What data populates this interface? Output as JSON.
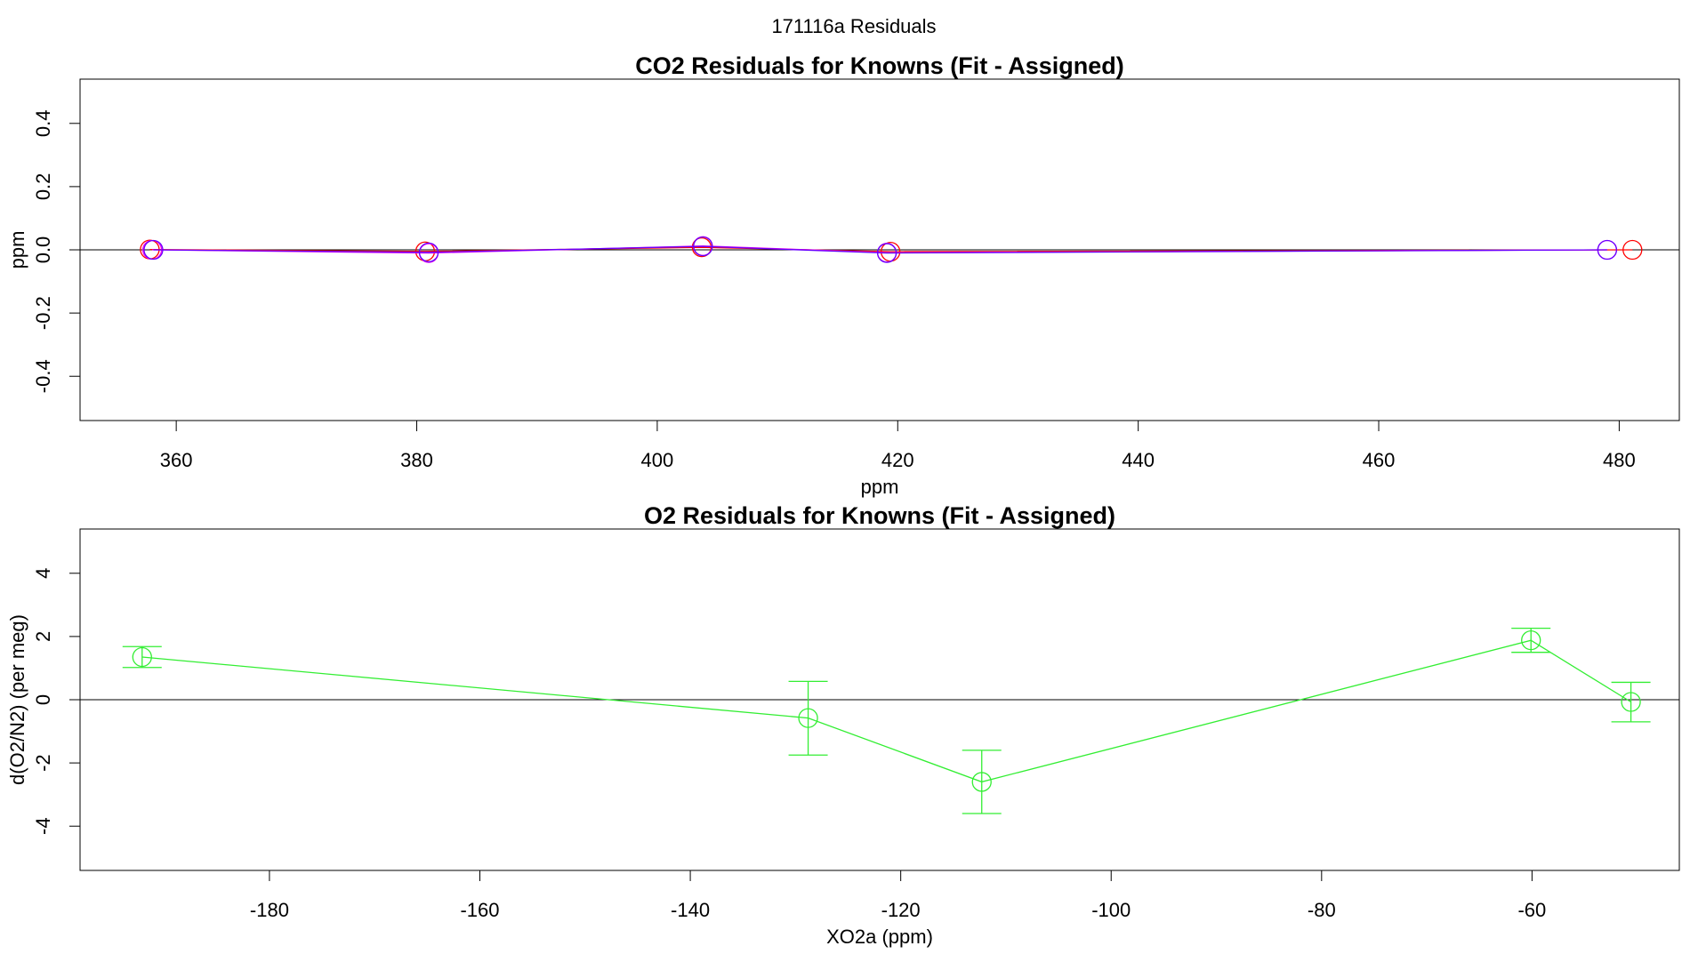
{
  "figure": {
    "title": "171116a  Residuals"
  },
  "chart_data": [
    {
      "type": "line",
      "title": "CO2 Residuals for Knowns (Fit - Assigned)",
      "xlabel": "ppm",
      "ylabel": "ppm",
      "xlim": [
        352,
        485
      ],
      "ylim": [
        -0.54,
        0.54
      ],
      "xticks": [
        360,
        380,
        400,
        420,
        440,
        460,
        480
      ],
      "yticks": [
        -0.4,
        -0.2,
        0.0,
        0.2,
        0.4
      ],
      "xtick_labels": [
        "360",
        "380",
        "400",
        "420",
        "440",
        "460",
        "480"
      ],
      "ytick_labels": [
        "-0.4",
        "-0.2",
        "0.0",
        "0.2",
        "0.4"
      ],
      "zero_line": true,
      "grid": false,
      "legend": "none",
      "series": [
        {
          "color": "#ff0000",
          "x": [
            357.8,
            380.7,
            403.7,
            419.4,
            481.1
          ],
          "y": [
            0.001,
            -0.005,
            0.008,
            -0.006,
            0.0
          ]
        },
        {
          "color": "#ee00ee",
          "x": [
            358.0,
            381.0,
            403.8,
            419.1,
            479.0
          ],
          "y": [
            0.0,
            -0.01,
            0.012,
            -0.009,
            0.0
          ]
        },
        {
          "color": "#6600ff",
          "x": [
            358.1,
            381.0,
            403.8,
            419.1,
            479.0
          ],
          "y": [
            0.0,
            -0.008,
            0.011,
            -0.01,
            0.0
          ]
        }
      ]
    },
    {
      "type": "line",
      "title": "O2 Residuals for Knowns (Fit - Assigned)",
      "xlabel": "XO2a (ppm)",
      "ylabel": "d(O2/N2) (per meg)",
      "xlim": [
        -198,
        -46
      ],
      "ylim": [
        -5.4,
        5.4
      ],
      "xticks": [
        -180,
        -160,
        -140,
        -120,
        -100,
        -80,
        -60
      ],
      "yticks": [
        -4,
        -2,
        0,
        2,
        4
      ],
      "xtick_labels": [
        "-180",
        "-160",
        "-140",
        "-120",
        "-100",
        "-80",
        "-60"
      ],
      "ytick_labels": [
        "-4",
        "-2",
        "0",
        "2",
        "4"
      ],
      "zero_line": true,
      "grid": false,
      "legend": "none",
      "series": [
        {
          "color": "#33ee33",
          "x": [
            -192.1,
            -128.8,
            -112.3,
            -60.1,
            -50.6
          ],
          "y": [
            1.35,
            -0.58,
            -2.6,
            1.88,
            -0.07
          ],
          "err_low": [
            1.02,
            -1.75,
            -3.6,
            1.5,
            -0.7
          ],
          "err_high": [
            1.68,
            0.58,
            -1.6,
            2.26,
            0.55
          ]
        }
      ]
    }
  ]
}
